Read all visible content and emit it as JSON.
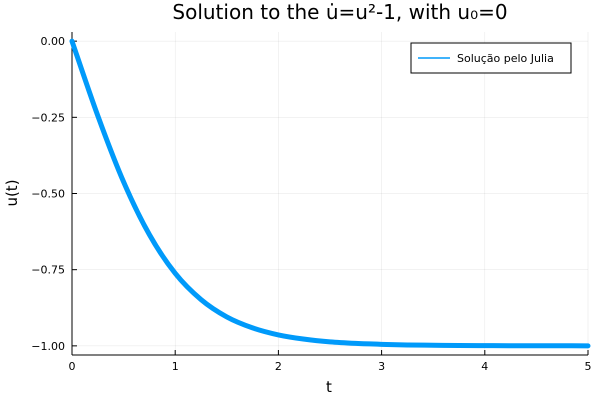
{
  "chart_data": {
    "type": "line",
    "title": "Solution to the u̇=u²-1, with u₀=0",
    "xlabel": "t",
    "ylabel": "u(t)",
    "xlim": [
      0,
      5
    ],
    "ylim": [
      -1.03,
      0.03
    ],
    "xticks": [
      0,
      1,
      2,
      3,
      4,
      5
    ],
    "xtick_labels": [
      "0",
      "1",
      "2",
      "3",
      "4",
      "5"
    ],
    "yticks": [
      0,
      -0.25,
      -0.5,
      -0.75,
      -1.0
    ],
    "ytick_labels": [
      "0.00",
      "−0.25",
      "−0.50",
      "−0.75",
      "−1.00"
    ],
    "grid": true,
    "legend_position": "top-right",
    "series": [
      {
        "name": "Solução pelo Julia",
        "color": "#009AFA",
        "x": [
          0,
          0.25,
          0.5,
          0.75,
          1.0,
          1.25,
          1.5,
          1.75,
          2.0,
          2.25,
          2.5,
          2.75,
          3.0,
          3.25,
          3.5,
          3.75,
          4.0,
          4.25,
          4.5,
          4.75,
          5.0
        ],
        "y": [
          0,
          -0.245,
          -0.462,
          -0.635,
          -0.762,
          -0.848,
          -0.905,
          -0.941,
          -0.964,
          -0.978,
          -0.987,
          -0.992,
          -0.995,
          -0.997,
          -0.998,
          -0.999,
          -0.9993,
          -0.9996,
          -0.9998,
          -0.9998,
          -0.9999
        ]
      }
    ]
  }
}
